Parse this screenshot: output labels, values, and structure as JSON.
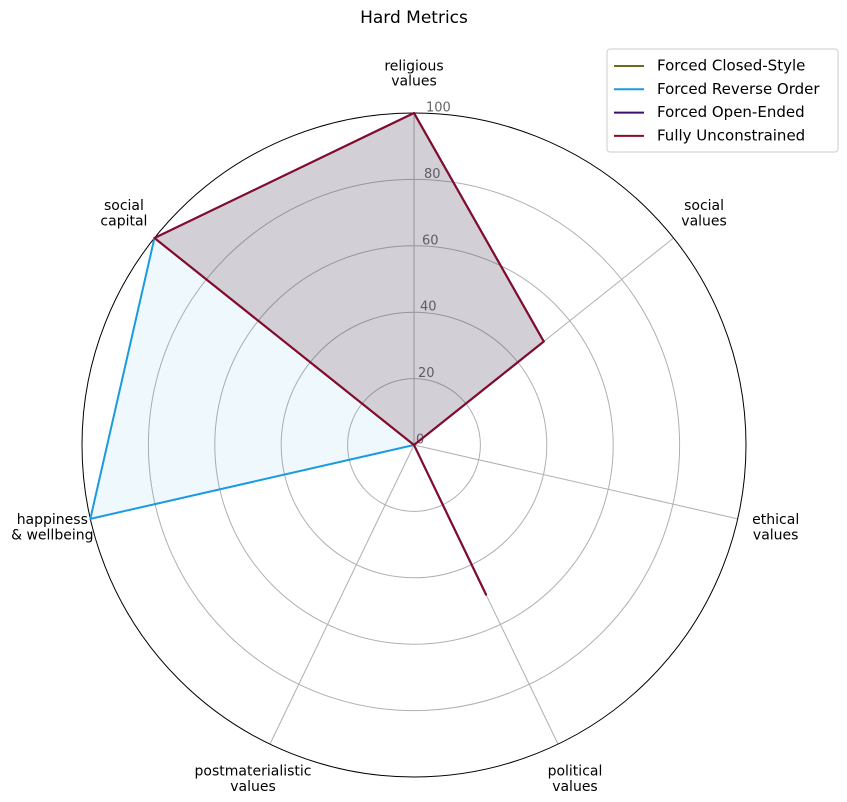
{
  "chart_data": {
    "type": "radar",
    "title": "Hard Metrics",
    "categories": [
      "religious\nvalues",
      "social\nvalues",
      "ethical\nvalues",
      "political\nvalues",
      "postmaterialistic\nvalues",
      "happiness\n& wellbeing",
      "social\ncapital"
    ],
    "series": [
      {
        "name": "Forced Closed-Style",
        "color": "#6b6b1e",
        "values": [
          100,
          50,
          0,
          50,
          0,
          0,
          100
        ]
      },
      {
        "name": "Forced Reverse Order",
        "color": "#1a9be0",
        "values": [
          100,
          50,
          0,
          50,
          0,
          100,
          100
        ]
      },
      {
        "name": "Forced Open-Ended",
        "color": "#3b0f70",
        "values": [
          100,
          50,
          0,
          50,
          0,
          0,
          100
        ]
      },
      {
        "name": "Fully Unconstrained",
        "color": "#8b0a28",
        "values": [
          100,
          50,
          0,
          50,
          0,
          0,
          100
        ]
      }
    ],
    "ylim": [
      0,
      100
    ],
    "yticks": [
      0,
      20,
      40,
      60,
      80,
      100
    ],
    "grid": true,
    "legend": "upper right"
  }
}
